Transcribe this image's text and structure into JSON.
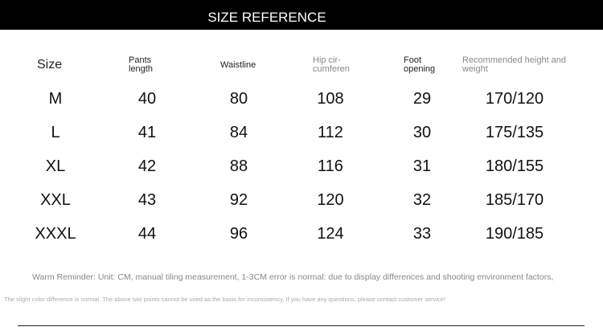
{
  "header": {
    "title": "SIZE REFERENCE"
  },
  "table": {
    "columns": [
      [
        "Size"
      ],
      [
        "Pants",
        "length"
      ],
      [
        "Waistline"
      ],
      [
        "Hip cir-",
        "cumferen"
      ],
      [
        "Foot",
        "opening"
      ],
      [
        "Recommended height and",
        "weight"
      ]
    ],
    "rows": [
      [
        "M",
        40,
        80,
        108,
        29,
        "170/120"
      ],
      [
        "L",
        41,
        84,
        112,
        30,
        "175/135"
      ],
      [
        "XL",
        42,
        88,
        116,
        31,
        "180/155"
      ],
      [
        "XXL",
        43,
        92,
        120,
        32,
        "185/170"
      ],
      [
        "XXXL",
        44,
        96,
        124,
        33,
        "190/185"
      ]
    ]
  },
  "footer": {
    "reminder": "Warm Reminder: Unit: CM, manual tiling measurement, 1-3CM error is normal: due to display differences and shooting environment factors,",
    "note": "The slight color difference is normal. The above two points cannot be used as the basis for inconsistency. If you have any questions, please contact customer service!"
  }
}
